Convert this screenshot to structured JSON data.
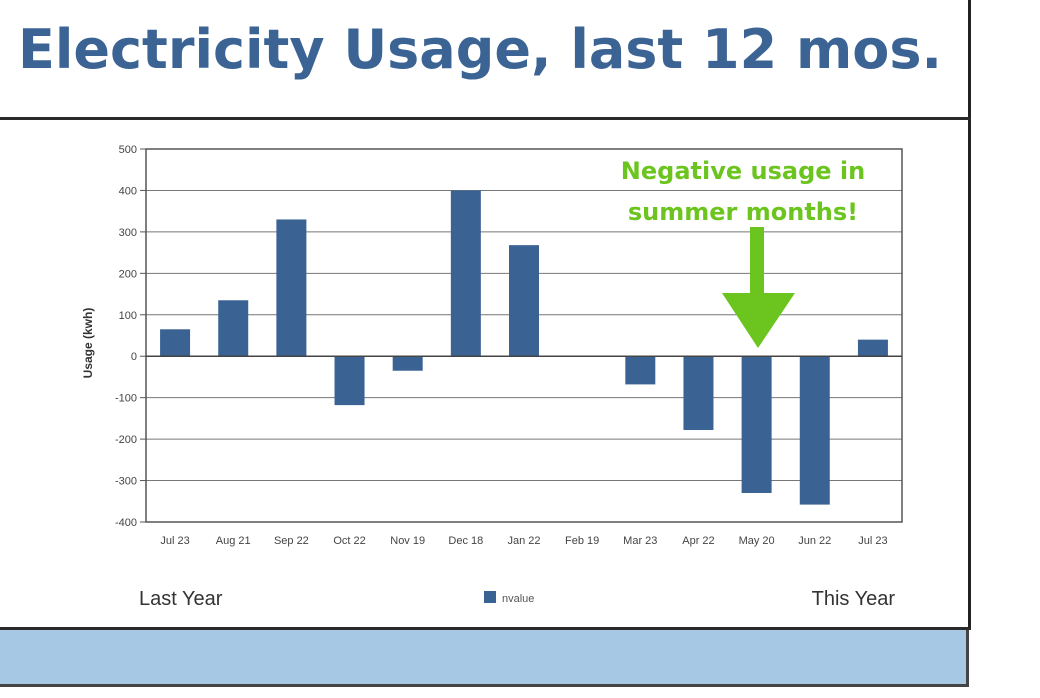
{
  "header": {
    "title": "Electricity Usage, last 12 mos."
  },
  "colors": {
    "title": "#3b6494",
    "bar": "#3a6394",
    "annotation": "#6cc51f",
    "band": "#a6c8e4"
  },
  "chart_data": {
    "type": "bar",
    "categories": [
      "Jul 23",
      "Aug 21",
      "Sep 22",
      "Oct 22",
      "Nov 19",
      "Dec 18",
      "Jan 22",
      "Feb 19",
      "Mar 23",
      "Apr 22",
      "May 20",
      "Jun 22",
      "Jul 23"
    ],
    "series": [
      {
        "name": "nvalue",
        "values": [
          65,
          135,
          330,
          -118,
          -35,
          400,
          268,
          0,
          -68,
          -178,
          -330,
          -358,
          40
        ]
      }
    ],
    "ylabel": "Usage (kwh)",
    "xlabel": "",
    "ylim": [
      -400,
      500
    ],
    "yticks": [
      500,
      400,
      300,
      200,
      100,
      0,
      -100,
      -200,
      -300,
      -400
    ],
    "grid": true,
    "legend": "bottom-center",
    "left_caption": "Last Year",
    "right_caption": "This Year",
    "annotation": {
      "line1": "Negative usage in",
      "line2": "summer months!"
    }
  }
}
